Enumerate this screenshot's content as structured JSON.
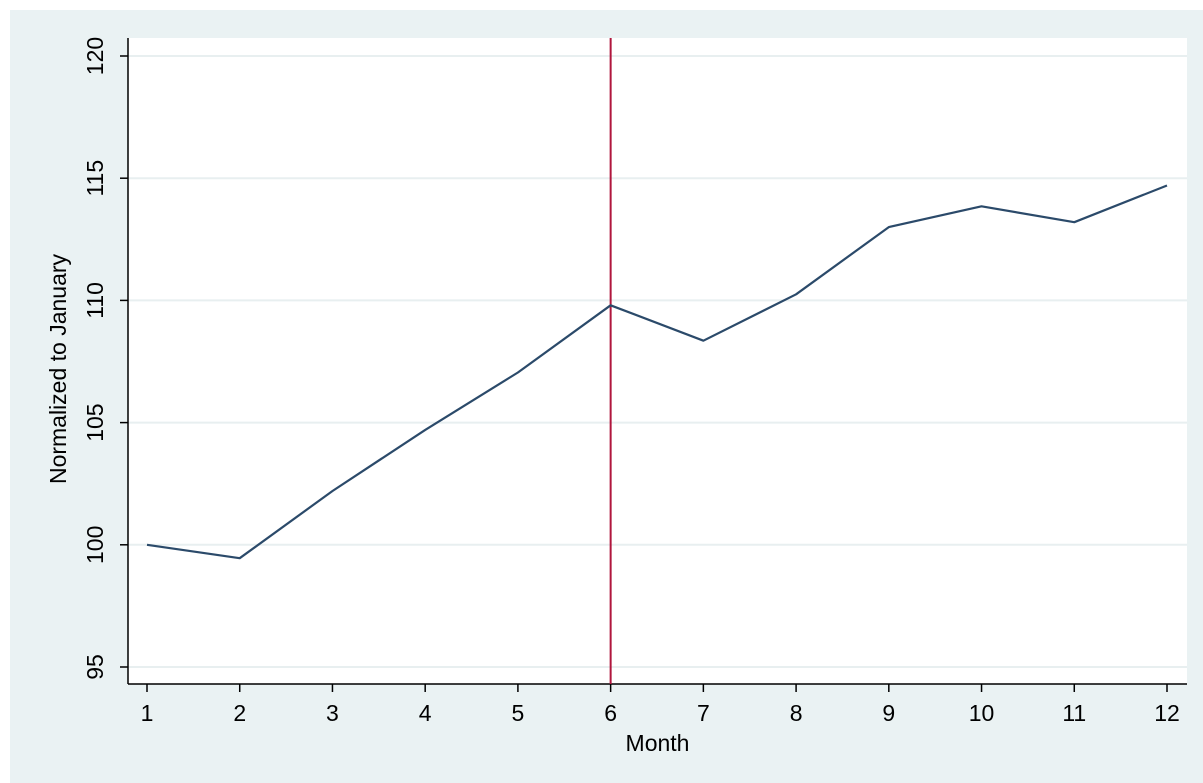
{
  "chart_data": {
    "type": "line",
    "xlabel": "Month",
    "ylabel": "Normalized to January",
    "x": [
      1,
      2,
      3,
      4,
      5,
      6,
      7,
      8,
      9,
      10,
      11,
      12
    ],
    "xticks": [
      "1",
      "2",
      "3",
      "4",
      "5",
      "6",
      "7",
      "8",
      "9",
      "10",
      "11",
      "12"
    ],
    "yticks": [
      "95",
      "100",
      "105",
      "110",
      "115",
      "120"
    ],
    "ylim": [
      95,
      120
    ],
    "xlim": [
      1,
      12
    ],
    "grid": true,
    "series": [
      {
        "values": [
          100.0,
          99.45,
          102.2,
          104.7,
          107.05,
          109.8,
          108.35,
          110.25,
          113.0,
          113.85,
          113.2,
          114.7
        ]
      }
    ],
    "reference_line": {
      "x": 6
    },
    "colors": {
      "line": "#2b4a6a",
      "reference": "#b0163d",
      "plot_background": "#ffffff",
      "outer_background": "#eaf2f3",
      "grid": "#e8eff0"
    }
  }
}
